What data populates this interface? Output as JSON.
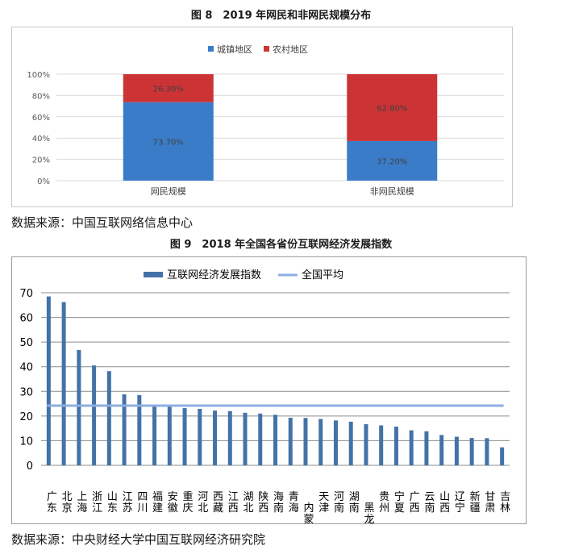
{
  "figure8": {
    "title": "图 8　2019 年网民和非网民规模分布",
    "source": "数据来源：中国互联网络信息中心"
  },
  "figure9": {
    "title": "图 9　2018 年全国各省份互联网经济发展指数",
    "source": "数据来源：中央财经大学中国互联网经济研究院"
  },
  "chart_data": [
    {
      "type": "bar",
      "stacked": true,
      "percent": true,
      "categories": [
        "网民规模",
        "非网民规模"
      ],
      "series": [
        {
          "name": "城镇地区",
          "values": [
            73.7,
            37.2
          ],
          "labels": [
            "73.70%",
            "37.20%"
          ],
          "color": "#3a7cc8"
        },
        {
          "name": "农村地区",
          "values": [
            26.3,
            62.8
          ],
          "labels": [
            "26.30%",
            "62.80%"
          ],
          "color": "#cc3335"
        }
      ],
      "y_ticks": [
        "0%",
        "20%",
        "40%",
        "60%",
        "80%",
        "100%"
      ],
      "ylim": [
        0,
        100
      ],
      "grid": true,
      "legend": "top"
    },
    {
      "type": "bar",
      "categories": [
        "广东",
        "北京",
        "上海",
        "浙江",
        "山东",
        "江苏",
        "四川",
        "福建",
        "安徽",
        "重庆",
        "河北",
        "西藏",
        "江西",
        "湖北",
        "陕西",
        "海南",
        "青海",
        "内蒙古",
        "天津",
        "河南",
        "湖南",
        "黑龙江",
        "贵州",
        "宁夏",
        "广西",
        "云南",
        "山西",
        "辽宁",
        "新疆",
        "甘肃",
        "吉林"
      ],
      "series": [
        {
          "name": "互联网经济发展指数",
          "color": "#4472a8",
          "values": [
            68.5,
            66.2,
            46.8,
            40.5,
            38.2,
            28.8,
            28.5,
            24.0,
            23.8,
            23.2,
            22.9,
            22.2,
            22.0,
            21.3,
            21.0,
            20.5,
            19.3,
            19.2,
            18.8,
            18.2,
            17.7,
            16.7,
            16.2,
            15.7,
            14.2,
            13.8,
            12.3,
            11.6,
            11.1,
            11.0,
            7.3
          ]
        },
        {
          "name": "全国平均",
          "color": "#8eaee0",
          "type": "line",
          "value": 24.2
        }
      ],
      "y_ticks": [
        "0",
        "10",
        "20",
        "30",
        "40",
        "50",
        "60",
        "70"
      ],
      "ylim": [
        0,
        70
      ],
      "grid": true,
      "legend": "top"
    }
  ]
}
